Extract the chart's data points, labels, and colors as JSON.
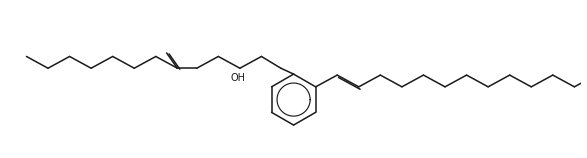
{
  "background_color": "#ffffff",
  "line_color": "#1a1a1a",
  "line_width": 1.1,
  "figsize": [
    5.87,
    1.58
  ],
  "dpi": 100,
  "oh_label": "OH",
  "oh_fontsize": 7.0
}
